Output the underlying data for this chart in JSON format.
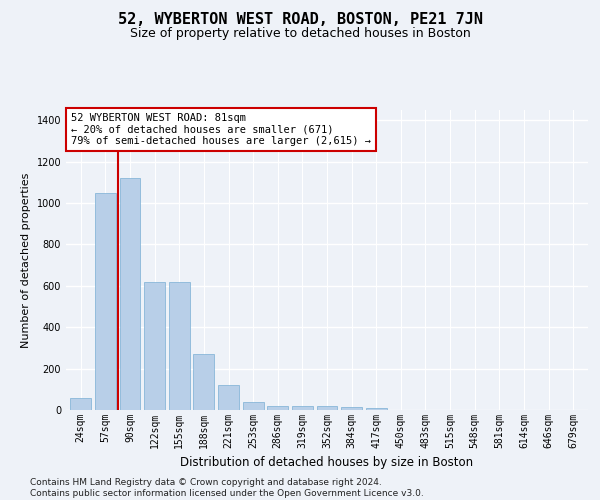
{
  "title": "52, WYBERTON WEST ROAD, BOSTON, PE21 7JN",
  "subtitle": "Size of property relative to detached houses in Boston",
  "xlabel": "Distribution of detached houses by size in Boston",
  "ylabel": "Number of detached properties",
  "categories": [
    "24sqm",
    "57sqm",
    "90sqm",
    "122sqm",
    "155sqm",
    "188sqm",
    "221sqm",
    "253sqm",
    "286sqm",
    "319sqm",
    "352sqm",
    "384sqm",
    "417sqm",
    "450sqm",
    "483sqm",
    "515sqm",
    "548sqm",
    "581sqm",
    "614sqm",
    "646sqm",
    "679sqm"
  ],
  "values": [
    60,
    1050,
    1120,
    620,
    620,
    270,
    120,
    38,
    20,
    18,
    20,
    15,
    10,
    0,
    0,
    0,
    0,
    0,
    0,
    0,
    0
  ],
  "bar_color": "#b8cfe8",
  "bar_edge_color": "#7aafd4",
  "vline_color": "#cc0000",
  "vline_x_index": 2,
  "annotation_text": "52 WYBERTON WEST ROAD: 81sqm\n← 20% of detached houses are smaller (671)\n79% of semi-detached houses are larger (2,615) →",
  "annotation_box_facecolor": "#ffffff",
  "annotation_box_edgecolor": "#cc0000",
  "ylim": [
    0,
    1450
  ],
  "yticks": [
    0,
    200,
    400,
    600,
    800,
    1000,
    1200,
    1400
  ],
  "footer": "Contains HM Land Registry data © Crown copyright and database right 2024.\nContains public sector information licensed under the Open Government Licence v3.0.",
  "background_color": "#eef2f8",
  "grid_color": "#ffffff",
  "title_fontsize": 11,
  "subtitle_fontsize": 9,
  "xlabel_fontsize": 8.5,
  "ylabel_fontsize": 8,
  "tick_fontsize": 7,
  "annotation_fontsize": 7.5,
  "footer_fontsize": 6.5
}
